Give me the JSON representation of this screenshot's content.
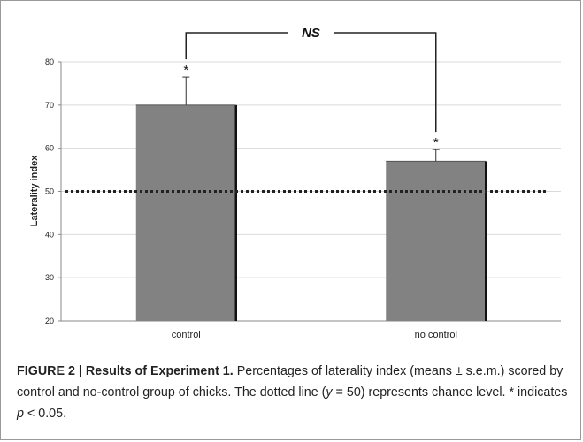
{
  "chart_data": {
    "type": "bar",
    "categories": [
      "control",
      "no control"
    ],
    "values": [
      70,
      57
    ],
    "errors": [
      6.5,
      2.7
    ],
    "ylabel": "Laterality index",
    "xlabel": "",
    "ylim": [
      20,
      80
    ],
    "yticks": [
      20,
      30,
      40,
      50,
      60,
      70,
      80
    ],
    "grid": true,
    "reference_line": {
      "y": 50,
      "style": "dotted"
    },
    "significance_marks": [
      "*",
      "*"
    ],
    "comparison_label": "NS",
    "colors": {
      "bar": "#828282",
      "bar_edge": "#111111",
      "grid": "#d9d9d9",
      "text": "#222222"
    }
  },
  "caption": {
    "label": "FIGURE 2 | Results of Experiment 1.",
    "text_1": " Percentages of laterality index (means ± s.e.m.) scored by control and no-control group of chicks. The dotted line (",
    "y_var": "y",
    "text_2": " = 50) represents chance level. * indicates ",
    "p_var": "p",
    "text_3": " < 0.05."
  }
}
